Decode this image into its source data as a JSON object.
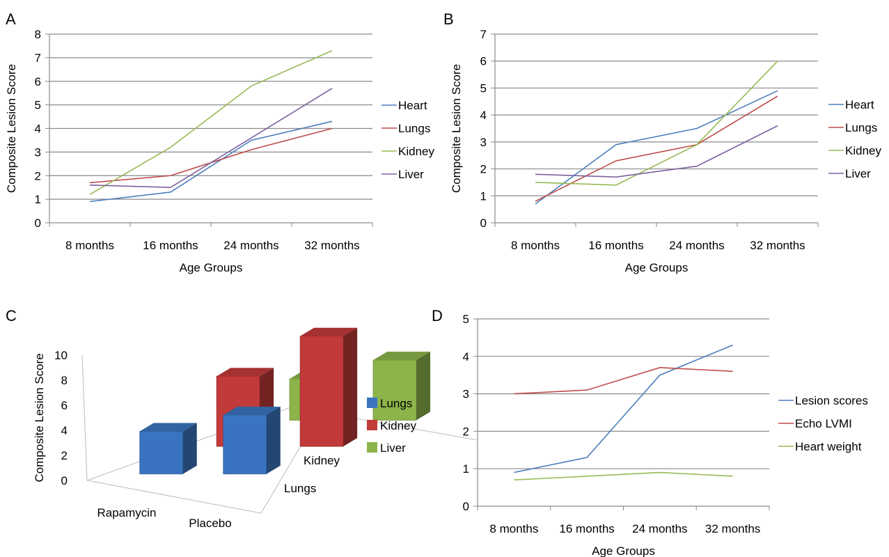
{
  "chart_data": [
    {
      "panel": "A",
      "type": "line",
      "categories": [
        "8 months",
        "16 months",
        "24 months",
        "32 months"
      ],
      "xlabel": "Age Groups",
      "ylabel": "Composite Lesion Score",
      "ylim": [
        0,
        8
      ],
      "yticks": [
        0,
        1,
        2,
        3,
        4,
        5,
        6,
        7,
        8
      ],
      "grid": true,
      "legend": "right",
      "series": [
        {
          "name": "Heart",
          "color": "#4a7ebb",
          "values": [
            0.9,
            1.3,
            3.5,
            4.3
          ]
        },
        {
          "name": "Lungs",
          "color": "#be4b48",
          "values": [
            1.7,
            2.0,
            3.1,
            4.0
          ]
        },
        {
          "name": "Kidney",
          "color": "#98b954",
          "values": [
            1.2,
            3.2,
            5.8,
            7.3
          ]
        },
        {
          "name": "Liver",
          "color": "#7d60a0",
          "values": [
            1.6,
            1.5,
            3.6,
            5.7
          ]
        }
      ]
    },
    {
      "panel": "B",
      "type": "line",
      "categories": [
        "8 months",
        "16 months",
        "24 months",
        "32 months"
      ],
      "xlabel": "Age Groups",
      "ylabel": "Composite Lesion Score",
      "ylim": [
        0,
        7
      ],
      "yticks": [
        0,
        1,
        2,
        3,
        4,
        5,
        6,
        7
      ],
      "grid": true,
      "legend": "right",
      "series": [
        {
          "name": "Heart",
          "color": "#4a7ebb",
          "values": [
            0.7,
            2.9,
            3.5,
            4.9
          ]
        },
        {
          "name": "Lungs",
          "color": "#be4b48",
          "values": [
            0.8,
            2.3,
            2.9,
            4.7
          ]
        },
        {
          "name": "Kidney",
          "color": "#98b954",
          "values": [
            1.5,
            1.4,
            2.9,
            6.0
          ]
        },
        {
          "name": "Liver",
          "color": "#7d60a0",
          "values": [
            1.8,
            1.7,
            2.1,
            3.6
          ]
        }
      ]
    },
    {
      "panel": "C",
      "type": "bar",
      "categories": [
        "Rapamycin",
        "Placebo"
      ],
      "depth_categories": [
        "Lungs",
        "Kidney",
        "Liver"
      ],
      "ylabel": "Composite Lesion Score",
      "ylim": [
        0,
        10
      ],
      "yticks": [
        0,
        2,
        4,
        6,
        8,
        10
      ],
      "legend": "right",
      "series": [
        {
          "name": "Lungs",
          "color": "#3a74c0",
          "values": [
            3.4,
            4.7
          ]
        },
        {
          "name": "Kidney",
          "color": "#c23a3a",
          "values": [
            5.6,
            8.8
          ]
        },
        {
          "name": "Liver",
          "color": "#8cb44a",
          "values": [
            3.3,
            4.8
          ]
        }
      ]
    },
    {
      "panel": "D",
      "type": "line",
      "categories": [
        "8 months",
        "16 months",
        "24 months",
        "32 months"
      ],
      "xlabel": "Age Groups",
      "ylim": [
        0,
        5
      ],
      "yticks": [
        0,
        1,
        2,
        3,
        4,
        5
      ],
      "grid": true,
      "legend": "right",
      "series": [
        {
          "name": "Lesion scores",
          "color": "#4a7ebb",
          "values": [
            0.9,
            1.3,
            3.5,
            4.3
          ]
        },
        {
          "name": "Echo LVMI",
          "color": "#be4b48",
          "values": [
            3.0,
            3.1,
            3.7,
            3.6
          ]
        },
        {
          "name": "Heart weight",
          "color": "#98b954",
          "values": [
            0.7,
            0.8,
            0.9,
            0.8
          ]
        }
      ]
    }
  ]
}
